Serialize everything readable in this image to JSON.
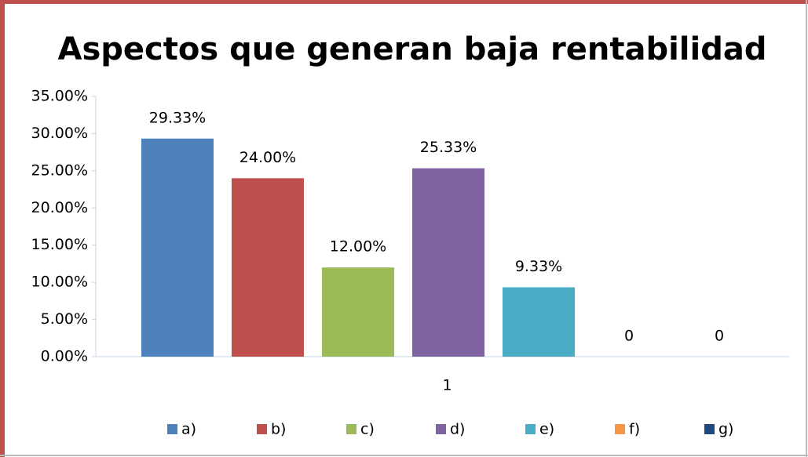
{
  "chart_data": {
    "type": "bar",
    "title": "Aspectos que generan baja rentabilidad",
    "categories": [
      "1"
    ],
    "series": [
      {
        "name": "a)",
        "color": "#4f81bd",
        "values": [
          29.33
        ],
        "value_labels": [
          "29.33%"
        ]
      },
      {
        "name": "b)",
        "color": "#c0504d",
        "values": [
          24
        ],
        "value_labels": [
          "24.00%"
        ]
      },
      {
        "name": "c)",
        "color": "#9bbb59",
        "values": [
          12
        ],
        "value_labels": [
          "12.00%"
        ]
      },
      {
        "name": "d)",
        "color": "#8064a2",
        "values": [
          25.33
        ],
        "value_labels": [
          "25.33%"
        ]
      },
      {
        "name": "e)",
        "color": "#4bacc6",
        "values": [
          9.33
        ],
        "value_labels": [
          "9.33%"
        ]
      },
      {
        "name": "f)",
        "color": "#f79646",
        "values": [
          0
        ],
        "value_labels": [
          "0"
        ]
      },
      {
        "name": "g)",
        "color": "#1f497d",
        "values": [
          0
        ],
        "value_labels": [
          "0"
        ]
      }
    ],
    "ylim": [
      0,
      35
    ],
    "yticks": [
      {
        "value": 0,
        "label": "0.00%"
      },
      {
        "value": 5,
        "label": "5.00%"
      },
      {
        "value": 10,
        "label": "10.00%"
      },
      {
        "value": 15,
        "label": "15.00%"
      },
      {
        "value": 20,
        "label": "20.00%"
      },
      {
        "value": 25,
        "label": "25.00%"
      },
      {
        "value": 30,
        "label": "30.00%"
      },
      {
        "value": 35,
        "label": "35.00%"
      }
    ],
    "grid": false,
    "legend": "bottom"
  }
}
